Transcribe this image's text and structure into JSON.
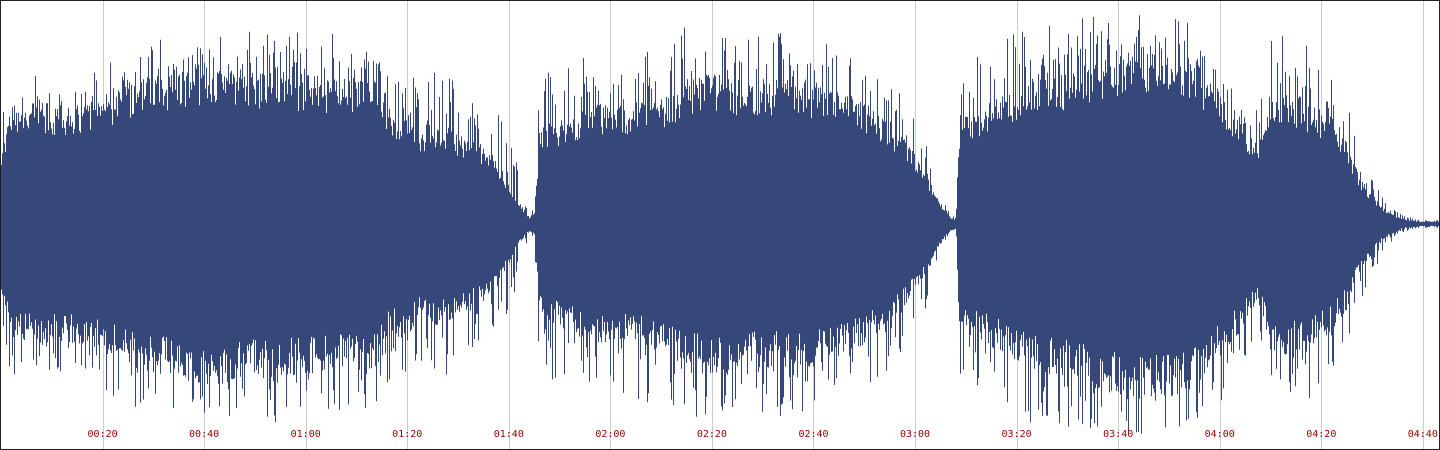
{
  "colors": {
    "waveform": "#36477a",
    "tick_label": "#990000",
    "gridline": "#cccccc",
    "background": "#ffffff",
    "border": "#222222"
  },
  "chart_data": {
    "type": "area",
    "title": "",
    "xlabel": "",
    "ylabel": "",
    "x_unit": "seconds",
    "xlim": [
      0,
      282
    ],
    "ylim": [
      -1,
      1
    ],
    "grid": "vertical",
    "ticks": [
      {
        "t": 20,
        "label": "00:20"
      },
      {
        "t": 40,
        "label": "00:40"
      },
      {
        "t": 60,
        "label": "01:00"
      },
      {
        "t": 80,
        "label": "01:20"
      },
      {
        "t": 100,
        "label": "01:40"
      },
      {
        "t": 120,
        "label": "02:00"
      },
      {
        "t": 140,
        "label": "02:20"
      },
      {
        "t": 160,
        "label": "02:40"
      },
      {
        "t": 180,
        "label": "03:00"
      },
      {
        "t": 200,
        "label": "03:20"
      },
      {
        "t": 220,
        "label": "03:40"
      },
      {
        "t": 240,
        "label": "04:00"
      },
      {
        "t": 260,
        "label": "04:20"
      },
      {
        "t": 280,
        "label": "04:40"
      }
    ],
    "envelope": {
      "t": [
        0,
        2,
        6,
        10,
        14,
        18,
        22,
        26,
        30,
        34,
        38,
        42,
        46,
        50,
        54,
        58,
        62,
        66,
        70,
        74,
        77,
        80,
        82,
        86,
        90,
        94,
        98,
        101,
        103,
        104,
        105,
        106,
        108,
        112,
        116,
        120,
        124,
        128,
        132,
        135,
        138,
        142,
        146,
        150,
        154,
        158,
        162,
        166,
        170,
        174,
        178,
        182,
        184,
        186,
        187,
        188,
        188.5,
        190,
        194,
        198,
        202,
        206,
        210,
        214,
        218,
        222,
        226,
        230,
        234,
        238,
        242,
        244,
        246,
        248,
        250,
        254,
        258,
        262,
        265,
        266.5,
        268,
        270,
        272,
        274,
        276,
        278,
        280,
        282
      ],
      "rms": [
        0.3,
        0.5,
        0.5,
        0.48,
        0.5,
        0.52,
        0.55,
        0.6,
        0.62,
        0.64,
        0.66,
        0.67,
        0.66,
        0.64,
        0.64,
        0.63,
        0.62,
        0.62,
        0.61,
        0.6,
        0.45,
        0.5,
        0.4,
        0.42,
        0.38,
        0.34,
        0.25,
        0.12,
        0.06,
        0.03,
        0.05,
        0.4,
        0.42,
        0.45,
        0.5,
        0.5,
        0.5,
        0.52,
        0.55,
        0.6,
        0.62,
        0.62,
        0.6,
        0.6,
        0.6,
        0.6,
        0.58,
        0.55,
        0.5,
        0.45,
        0.35,
        0.22,
        0.12,
        0.06,
        0.03,
        0.02,
        0.4,
        0.45,
        0.5,
        0.55,
        0.6,
        0.62,
        0.64,
        0.66,
        0.7,
        0.72,
        0.74,
        0.72,
        0.7,
        0.6,
        0.5,
        0.45,
        0.35,
        0.35,
        0.55,
        0.55,
        0.5,
        0.45,
        0.35,
        0.25,
        0.18,
        0.12,
        0.07,
        0.04,
        0.02,
        0.015,
        0.01,
        0.01
      ],
      "peak": [
        0.5,
        0.75,
        0.72,
        0.7,
        0.72,
        0.75,
        0.82,
        0.9,
        0.88,
        0.9,
        0.92,
        0.9,
        0.93,
        0.95,
        0.95,
        0.94,
        0.93,
        0.92,
        0.92,
        0.9,
        0.72,
        0.85,
        0.65,
        0.75,
        0.7,
        0.6,
        0.55,
        0.35,
        0.12,
        0.05,
        0.1,
        0.72,
        0.75,
        0.78,
        0.8,
        0.8,
        0.82,
        0.86,
        0.9,
        0.95,
        0.93,
        0.92,
        0.9,
        0.9,
        0.92,
        0.9,
        0.88,
        0.85,
        0.78,
        0.72,
        0.6,
        0.4,
        0.2,
        0.1,
        0.05,
        0.03,
        0.7,
        0.78,
        0.85,
        0.9,
        0.95,
        0.95,
        0.98,
        1.0,
        1.0,
        1.0,
        1.0,
        1.0,
        0.98,
        0.9,
        0.85,
        0.7,
        0.6,
        0.6,
        0.9,
        0.9,
        0.85,
        0.75,
        0.6,
        0.45,
        0.35,
        0.25,
        0.14,
        0.08,
        0.04,
        0.03,
        0.02,
        0.02
      ]
    }
  }
}
